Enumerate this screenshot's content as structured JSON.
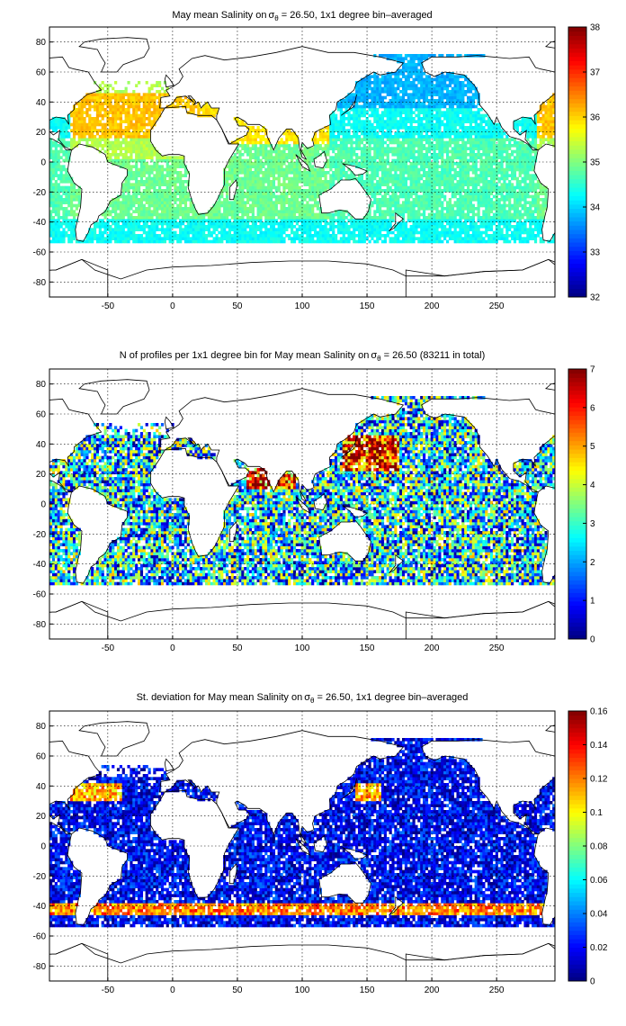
{
  "chart_data": [
    {
      "type": "heatmap",
      "title_prefix": "May mean Salinity on",
      "title_suffix": " = 26.50, 1x1 degree bin–averaged",
      "sigma_symbol": "σ",
      "sigma_sub": "θ",
      "x_ticks": [
        -50,
        0,
        50,
        100,
        150,
        200,
        250
      ],
      "y_ticks": [
        -80,
        -60,
        -40,
        -20,
        0,
        20,
        40,
        60,
        80
      ],
      "xlim": [
        -95,
        295
      ],
      "ylim": [
        -90,
        90
      ],
      "grid": true,
      "colormap": "jet",
      "colorbar_range": [
        32,
        38
      ],
      "colorbar_ticks": [
        "32",
        "33",
        "34",
        "35",
        "36",
        "37",
        "38"
      ]
    },
    {
      "type": "heatmap",
      "title_prefix": "N of profiles per 1x1 degree bin for May mean Salinity on",
      "title_suffix": " = 26.50 (83211 in total)",
      "sigma_symbol": "σ",
      "sigma_sub": "θ",
      "x_ticks": [
        -50,
        0,
        50,
        100,
        150,
        200,
        250
      ],
      "y_ticks": [
        -80,
        -60,
        -40,
        -20,
        0,
        20,
        40,
        60,
        80
      ],
      "xlim": [
        -95,
        295
      ],
      "ylim": [
        -90,
        90
      ],
      "grid": true,
      "colormap": "jet",
      "colorbar_range": [
        0,
        7
      ],
      "colorbar_ticks": [
        "0",
        "1",
        "2",
        "3",
        "4",
        "5",
        "6",
        "7"
      ]
    },
    {
      "type": "heatmap",
      "title_prefix": "St. deviation for May mean Salinity on",
      "title_suffix": " = 26.50, 1x1 degree bin–averaged",
      "sigma_symbol": "σ",
      "sigma_sub": "θ",
      "x_ticks": [
        -50,
        0,
        50,
        100,
        150,
        200,
        250
      ],
      "y_ticks": [
        -80,
        -60,
        -40,
        -20,
        0,
        20,
        40,
        60,
        80
      ],
      "xlim": [
        -95,
        295
      ],
      "ylim": [
        -90,
        90
      ],
      "grid": true,
      "colormap": "jet",
      "colorbar_range": [
        0,
        0.16
      ],
      "colorbar_ticks": [
        "0",
        "0.02",
        "0.04",
        "0.06",
        "0.08",
        "0.1",
        "0.12",
        "0.14",
        "0.16"
      ]
    }
  ]
}
